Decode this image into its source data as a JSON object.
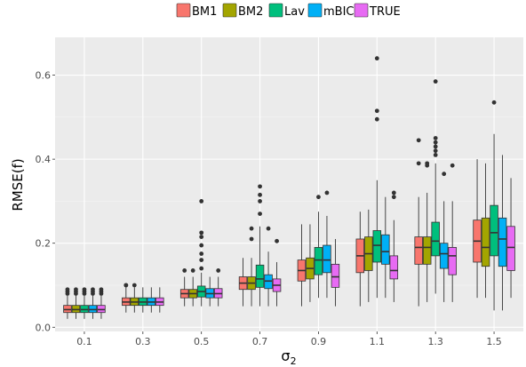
{
  "chart_data": {
    "type": "box",
    "xlabel": "σ",
    "xlabel_sub": "2",
    "ylabel": "RMSE(f)",
    "ylim": [
      -0.01,
      0.69
    ],
    "yticks": [
      0.0,
      0.2,
      0.4,
      0.6
    ],
    "ytick_labels": [
      "0.0",
      "0.2",
      "0.4",
      "0.6"
    ],
    "grid": true,
    "legend_position": "top",
    "categories": [
      "0.1",
      "0.3",
      "0.5",
      "0.7",
      "0.9",
      "1.1",
      "1.3",
      "1.5"
    ],
    "series": [
      {
        "name": "BM1",
        "color": "#F8766D",
        "boxes": [
          {
            "min": 0.02,
            "q1": 0.035,
            "median": 0.042,
            "q3": 0.052,
            "max": 0.075,
            "outliers": [
              0.08,
              0.085,
              0.09
            ]
          },
          {
            "min": 0.035,
            "q1": 0.052,
            "median": 0.06,
            "q3": 0.07,
            "max": 0.095,
            "outliers": [
              0.1,
              0.1
            ]
          },
          {
            "min": 0.05,
            "q1": 0.07,
            "median": 0.08,
            "q3": 0.09,
            "max": 0.12,
            "outliers": [
              0.135
            ]
          },
          {
            "min": 0.05,
            "q1": 0.09,
            "median": 0.105,
            "q3": 0.12,
            "max": 0.165,
            "outliers": []
          },
          {
            "min": 0.05,
            "q1": 0.11,
            "median": 0.135,
            "q3": 0.16,
            "max": 0.245,
            "outliers": []
          },
          {
            "min": 0.05,
            "q1": 0.13,
            "median": 0.17,
            "q3": 0.21,
            "max": 0.275,
            "outliers": []
          },
          {
            "min": 0.05,
            "q1": 0.15,
            "median": 0.19,
            "q3": 0.215,
            "max": 0.31,
            "outliers": [
              0.39,
              0.445
            ]
          },
          {
            "min": 0.07,
            "q1": 0.155,
            "median": 0.205,
            "q3": 0.255,
            "max": 0.4,
            "outliers": []
          }
        ]
      },
      {
        "name": "BM2",
        "color": "#A3A500",
        "boxes": [
          {
            "min": 0.02,
            "q1": 0.035,
            "median": 0.042,
            "q3": 0.052,
            "max": 0.075,
            "outliers": [
              0.08,
              0.085,
              0.09
            ]
          },
          {
            "min": 0.035,
            "q1": 0.052,
            "median": 0.06,
            "q3": 0.07,
            "max": 0.095,
            "outliers": [
              0.1
            ]
          },
          {
            "min": 0.05,
            "q1": 0.07,
            "median": 0.08,
            "q3": 0.09,
            "max": 0.12,
            "outliers": [
              0.135
            ]
          },
          {
            "min": 0.05,
            "q1": 0.09,
            "median": 0.105,
            "q3": 0.12,
            "max": 0.165,
            "outliers": [
              0.21,
              0.235
            ]
          },
          {
            "min": 0.06,
            "q1": 0.115,
            "median": 0.14,
            "q3": 0.165,
            "max": 0.245,
            "outliers": []
          },
          {
            "min": 0.06,
            "q1": 0.135,
            "median": 0.175,
            "q3": 0.215,
            "max": 0.28,
            "outliers": []
          },
          {
            "min": 0.06,
            "q1": 0.15,
            "median": 0.19,
            "q3": 0.215,
            "max": 0.32,
            "outliers": [
              0.385,
              0.39
            ]
          },
          {
            "min": 0.07,
            "q1": 0.145,
            "median": 0.19,
            "q3": 0.26,
            "max": 0.39,
            "outliers": []
          }
        ]
      },
      {
        "name": "Lav",
        "color": "#00BF7D",
        "boxes": [
          {
            "min": 0.02,
            "q1": 0.035,
            "median": 0.042,
            "q3": 0.052,
            "max": 0.075,
            "outliers": [
              0.08,
              0.085,
              0.09
            ]
          },
          {
            "min": 0.035,
            "q1": 0.052,
            "median": 0.06,
            "q3": 0.07,
            "max": 0.095,
            "outliers": []
          },
          {
            "min": 0.05,
            "q1": 0.072,
            "median": 0.085,
            "q3": 0.098,
            "max": 0.13,
            "outliers": [
              0.14,
              0.16,
              0.175,
              0.195,
              0.215,
              0.225,
              0.3
            ]
          },
          {
            "min": 0.05,
            "q1": 0.095,
            "median": 0.115,
            "q3": 0.148,
            "max": 0.24,
            "outliers": [
              0.27,
              0.3,
              0.315,
              0.335
            ]
          },
          {
            "min": 0.07,
            "q1": 0.125,
            "median": 0.16,
            "q3": 0.19,
            "max": 0.275,
            "outliers": [
              0.31
            ]
          },
          {
            "min": 0.07,
            "q1": 0.155,
            "median": 0.195,
            "q3": 0.23,
            "max": 0.35,
            "outliers": [
              0.495,
              0.515,
              0.64
            ]
          },
          {
            "min": 0.08,
            "q1": 0.17,
            "median": 0.205,
            "q3": 0.25,
            "max": 0.39,
            "outliers": [
              0.41,
              0.42,
              0.43,
              0.44,
              0.45,
              0.585
            ]
          },
          {
            "min": 0.04,
            "q1": 0.17,
            "median": 0.225,
            "q3": 0.29,
            "max": 0.46,
            "outliers": [
              0.535
            ]
          }
        ]
      },
      {
        "name": "mBIC",
        "color": "#00B0F6",
        "boxes": [
          {
            "min": 0.02,
            "q1": 0.035,
            "median": 0.042,
            "q3": 0.052,
            "max": 0.075,
            "outliers": [
              0.08,
              0.085,
              0.09
            ]
          },
          {
            "min": 0.035,
            "q1": 0.052,
            "median": 0.06,
            "q3": 0.07,
            "max": 0.095,
            "outliers": []
          },
          {
            "min": 0.05,
            "q1": 0.07,
            "median": 0.08,
            "q3": 0.092,
            "max": 0.12,
            "outliers": []
          },
          {
            "min": 0.05,
            "q1": 0.092,
            "median": 0.11,
            "q3": 0.125,
            "max": 0.18,
            "outliers": [
              0.235
            ]
          },
          {
            "min": 0.07,
            "q1": 0.13,
            "median": 0.16,
            "q3": 0.195,
            "max": 0.265,
            "outliers": [
              0.32
            ]
          },
          {
            "min": 0.07,
            "q1": 0.15,
            "median": 0.18,
            "q3": 0.22,
            "max": 0.31,
            "outliers": []
          },
          {
            "min": 0.06,
            "q1": 0.14,
            "median": 0.175,
            "q3": 0.2,
            "max": 0.3,
            "outliers": [
              0.365
            ]
          },
          {
            "min": 0.04,
            "q1": 0.145,
            "median": 0.21,
            "q3": 0.26,
            "max": 0.41,
            "outliers": []
          }
        ]
      },
      {
        "name": "TRUE",
        "color": "#E76BF3",
        "boxes": [
          {
            "min": 0.02,
            "q1": 0.035,
            "median": 0.042,
            "q3": 0.052,
            "max": 0.075,
            "outliers": [
              0.08,
              0.085,
              0.09
            ]
          },
          {
            "min": 0.035,
            "q1": 0.052,
            "median": 0.06,
            "q3": 0.07,
            "max": 0.095,
            "outliers": []
          },
          {
            "min": 0.05,
            "q1": 0.07,
            "median": 0.08,
            "q3": 0.092,
            "max": 0.12,
            "outliers": [
              0.135
            ]
          },
          {
            "min": 0.05,
            "q1": 0.085,
            "median": 0.1,
            "q3": 0.115,
            "max": 0.155,
            "outliers": [
              0.205
            ]
          },
          {
            "min": 0.05,
            "q1": 0.095,
            "median": 0.12,
            "q3": 0.15,
            "max": 0.21,
            "outliers": []
          },
          {
            "min": 0.06,
            "q1": 0.115,
            "median": 0.135,
            "q3": 0.17,
            "max": 0.255,
            "outliers": [
              0.31,
              0.32
            ]
          },
          {
            "min": 0.06,
            "q1": 0.125,
            "median": 0.17,
            "q3": 0.19,
            "max": 0.3,
            "outliers": [
              0.385
            ]
          },
          {
            "min": 0.07,
            "q1": 0.135,
            "median": 0.19,
            "q3": 0.24,
            "max": 0.355,
            "outliers": []
          }
        ]
      }
    ]
  }
}
